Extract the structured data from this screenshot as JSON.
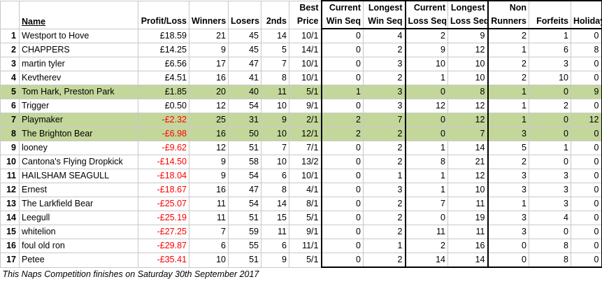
{
  "headers": {
    "name": "Name",
    "profit": "Profit/Loss",
    "winners": "Winners",
    "losers": "Losers",
    "seconds": "2nds",
    "best_top": "Best",
    "best_bottom": "Price",
    "cur_win_top": "Current",
    "cur_win_bottom": "Win Seq",
    "long_win_top": "Longest",
    "long_win_bottom": "Win Seq",
    "cur_loss_top": "Current",
    "cur_loss_bottom": "Loss Seq",
    "long_loss_top": "Longest",
    "long_loss_bottom": "Loss Seq",
    "non_top": "Non",
    "non_bottom": "Runners",
    "forfeits": "Forfeits",
    "holiday": "Holiday"
  },
  "rows": [
    {
      "rank": "1",
      "name": "Westport to Hove",
      "profit": "£18.59",
      "winners": "21",
      "losers": "45",
      "seconds": "14",
      "best": "10/1",
      "cur_win": "0",
      "long_win": "4",
      "cur_loss": "2",
      "long_loss": "9",
      "non": "2",
      "forfeits": "1",
      "holiday": "0",
      "neg": false,
      "hl": false
    },
    {
      "rank": "2",
      "name": "CHAPPERS",
      "profit": "£14.25",
      "winners": "9",
      "losers": "45",
      "seconds": "5",
      "best": "14/1",
      "cur_win": "0",
      "long_win": "2",
      "cur_loss": "9",
      "long_loss": "12",
      "non": "1",
      "forfeits": "6",
      "holiday": "8",
      "neg": false,
      "hl": false
    },
    {
      "rank": "3",
      "name": "martin tyler",
      "profit": "£6.56",
      "winners": "17",
      "losers": "47",
      "seconds": "7",
      "best": "10/1",
      "cur_win": "0",
      "long_win": "3",
      "cur_loss": "10",
      "long_loss": "10",
      "non": "2",
      "forfeits": "3",
      "holiday": "0",
      "neg": false,
      "hl": false
    },
    {
      "rank": "4",
      "name": "Kevtherev",
      "profit": "£4.51",
      "winners": "16",
      "losers": "41",
      "seconds": "8",
      "best": "10/1",
      "cur_win": "0",
      "long_win": "2",
      "cur_loss": "1",
      "long_loss": "10",
      "non": "2",
      "forfeits": "10",
      "holiday": "0",
      "neg": false,
      "hl": false
    },
    {
      "rank": "5",
      "name": "Tom Hark, Preston Park",
      "profit": "£1.85",
      "winners": "20",
      "losers": "40",
      "seconds": "11",
      "best": "5/1",
      "cur_win": "1",
      "long_win": "3",
      "cur_loss": "0",
      "long_loss": "8",
      "non": "1",
      "forfeits": "0",
      "holiday": "9",
      "neg": false,
      "hl": true
    },
    {
      "rank": "6",
      "name": "Trigger",
      "profit": "£0.50",
      "winners": "12",
      "losers": "54",
      "seconds": "10",
      "best": "9/1",
      "cur_win": "0",
      "long_win": "3",
      "cur_loss": "12",
      "long_loss": "12",
      "non": "1",
      "forfeits": "2",
      "holiday": "0",
      "neg": false,
      "hl": false
    },
    {
      "rank": "7",
      "name": "Playmaker",
      "profit": "-£2.32",
      "winners": "25",
      "losers": "31",
      "seconds": "9",
      "best": "2/1",
      "cur_win": "2",
      "long_win": "7",
      "cur_loss": "0",
      "long_loss": "12",
      "non": "1",
      "forfeits": "0",
      "holiday": "12",
      "neg": true,
      "hl": true
    },
    {
      "rank": "8",
      "name": "The Brighton Bear",
      "profit": "-£6.98",
      "winners": "16",
      "losers": "50",
      "seconds": "10",
      "best": "12/1",
      "cur_win": "2",
      "long_win": "2",
      "cur_loss": "0",
      "long_loss": "7",
      "non": "3",
      "forfeits": "0",
      "holiday": "0",
      "neg": true,
      "hl": true
    },
    {
      "rank": "9",
      "name": "looney",
      "profit": "-£9.62",
      "winners": "12",
      "losers": "51",
      "seconds": "7",
      "best": "7/1",
      "cur_win": "0",
      "long_win": "2",
      "cur_loss": "1",
      "long_loss": "14",
      "non": "5",
      "forfeits": "1",
      "holiday": "0",
      "neg": true,
      "hl": false
    },
    {
      "rank": "10",
      "name": "Cantona's Flying Dropkick",
      "profit": "-£14.50",
      "winners": "9",
      "losers": "58",
      "seconds": "10",
      "best": "13/2",
      "cur_win": "0",
      "long_win": "2",
      "cur_loss": "8",
      "long_loss": "21",
      "non": "2",
      "forfeits": "0",
      "holiday": "0",
      "neg": true,
      "hl": false
    },
    {
      "rank": "11",
      "name": "HAILSHAM SEAGULL",
      "profit": "-£18.04",
      "winners": "9",
      "losers": "54",
      "seconds": "6",
      "best": "10/1",
      "cur_win": "0",
      "long_win": "1",
      "cur_loss": "1",
      "long_loss": "12",
      "non": "3",
      "forfeits": "3",
      "holiday": "0",
      "neg": true,
      "hl": false
    },
    {
      "rank": "12",
      "name": "Ernest",
      "profit": "-£18.67",
      "winners": "16",
      "losers": "47",
      "seconds": "8",
      "best": "4/1",
      "cur_win": "0",
      "long_win": "3",
      "cur_loss": "1",
      "long_loss": "10",
      "non": "3",
      "forfeits": "3",
      "holiday": "0",
      "neg": true,
      "hl": false
    },
    {
      "rank": "13",
      "name": "The Larkfield Bear",
      "profit": "-£25.07",
      "winners": "11",
      "losers": "54",
      "seconds": "14",
      "best": "8/1",
      "cur_win": "0",
      "long_win": "2",
      "cur_loss": "7",
      "long_loss": "11",
      "non": "1",
      "forfeits": "3",
      "holiday": "0",
      "neg": true,
      "hl": false
    },
    {
      "rank": "14",
      "name": "Leegull",
      "profit": "-£25.19",
      "winners": "11",
      "losers": "51",
      "seconds": "15",
      "best": "5/1",
      "cur_win": "0",
      "long_win": "2",
      "cur_loss": "0",
      "long_loss": "19",
      "non": "3",
      "forfeits": "4",
      "holiday": "0",
      "neg": true,
      "hl": false
    },
    {
      "rank": "15",
      "name": "whitelion",
      "profit": "-£27.25",
      "winners": "7",
      "losers": "59",
      "seconds": "11",
      "best": "9/1",
      "cur_win": "0",
      "long_win": "2",
      "cur_loss": "11",
      "long_loss": "11",
      "non": "3",
      "forfeits": "0",
      "holiday": "0",
      "neg": true,
      "hl": false
    },
    {
      "rank": "16",
      "name": "foul old ron",
      "profit": "-£29.87",
      "winners": "6",
      "losers": "55",
      "seconds": "6",
      "best": "11/1",
      "cur_win": "0",
      "long_win": "1",
      "cur_loss": "2",
      "long_loss": "16",
      "non": "0",
      "forfeits": "8",
      "holiday": "0",
      "neg": true,
      "hl": false
    },
    {
      "rank": "17",
      "name": "Petee",
      "profit": "-£35.41",
      "winners": "10",
      "losers": "51",
      "seconds": "9",
      "best": "5/1",
      "cur_win": "0",
      "long_win": "2",
      "cur_loss": "14",
      "long_loss": "14",
      "non": "0",
      "forfeits": "8",
      "holiday": "0",
      "neg": true,
      "hl": false
    }
  ],
  "footer": "This Naps Competition finishes on Saturday 30th September 2017"
}
